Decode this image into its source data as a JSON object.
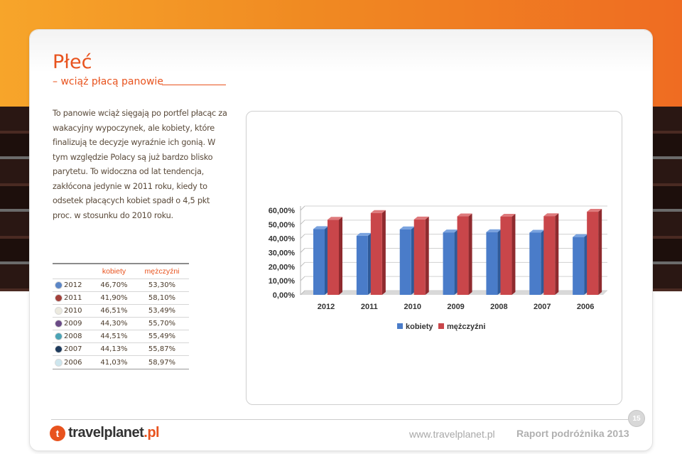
{
  "header": {
    "title": "Płeć",
    "subtitle": "– wciąż płacą panowie"
  },
  "body": {
    "paragraph": "To panowie wciąż sięgają po portfel płacąc za wakacyjny wypoczynek, ale kobiety, które finalizują te decyzje wyraźnie ich gonią. W tym względzie Polacy są już bardzo blisko parytetu. To widoczna od lat tendencja, zakłócona jedynie w 2011 roku, kiedy to odsetek płacących kobiet spadł o 4,5 pkt proc. w stosunku do 2010 roku."
  },
  "table": {
    "headers": [
      "kobiety",
      "mężczyźni"
    ],
    "rows": [
      {
        "year": "2012",
        "women": "46,70%",
        "men": "53,30%",
        "color": "#5b86c6"
      },
      {
        "year": "2011",
        "women": "41,90%",
        "men": "58,10%",
        "color": "#a3403a"
      },
      {
        "year": "2010",
        "women": "46,51%",
        "men": "53,49%",
        "color": "#eceadf"
      },
      {
        "year": "2009",
        "women": "44,30%",
        "men": "55,70%",
        "color": "#6a4a86"
      },
      {
        "year": "2008",
        "women": "44,51%",
        "men": "55,49%",
        "color": "#4ba3b5"
      },
      {
        "year": "2007",
        "women": "44,13%",
        "men": "55,87%",
        "color": "#1e3a5c"
      },
      {
        "year": "2006",
        "women": "41,03%",
        "men": "58,97%",
        "color": "#cde6ee"
      }
    ]
  },
  "chart_data": {
    "type": "bar",
    "categories": [
      "2012",
      "2011",
      "2010",
      "2009",
      "2008",
      "2007",
      "2006"
    ],
    "series": [
      {
        "name": "kobiety",
        "values": [
          46.7,
          41.9,
          46.51,
          44.3,
          44.51,
          44.13,
          41.03
        ],
        "color": "#4a7cc9"
      },
      {
        "name": "mężczyźni",
        "values": [
          53.3,
          58.1,
          53.49,
          55.7,
          55.49,
          55.87,
          58.97
        ],
        "color": "#c9464a"
      }
    ],
    "yticks": [
      "0,00%",
      "10,00%",
      "20,00%",
      "30,00%",
      "40,00%",
      "50,00%",
      "60,00%"
    ],
    "ylim": [
      0,
      60
    ],
    "legend_position": "bottom",
    "grid": true
  },
  "footer": {
    "logo_main": "travelplanet",
    "logo_suffix": ".pl",
    "url": "www.travelplanet.pl",
    "report": "Raport podróżnika 2013",
    "page_number": "15"
  }
}
